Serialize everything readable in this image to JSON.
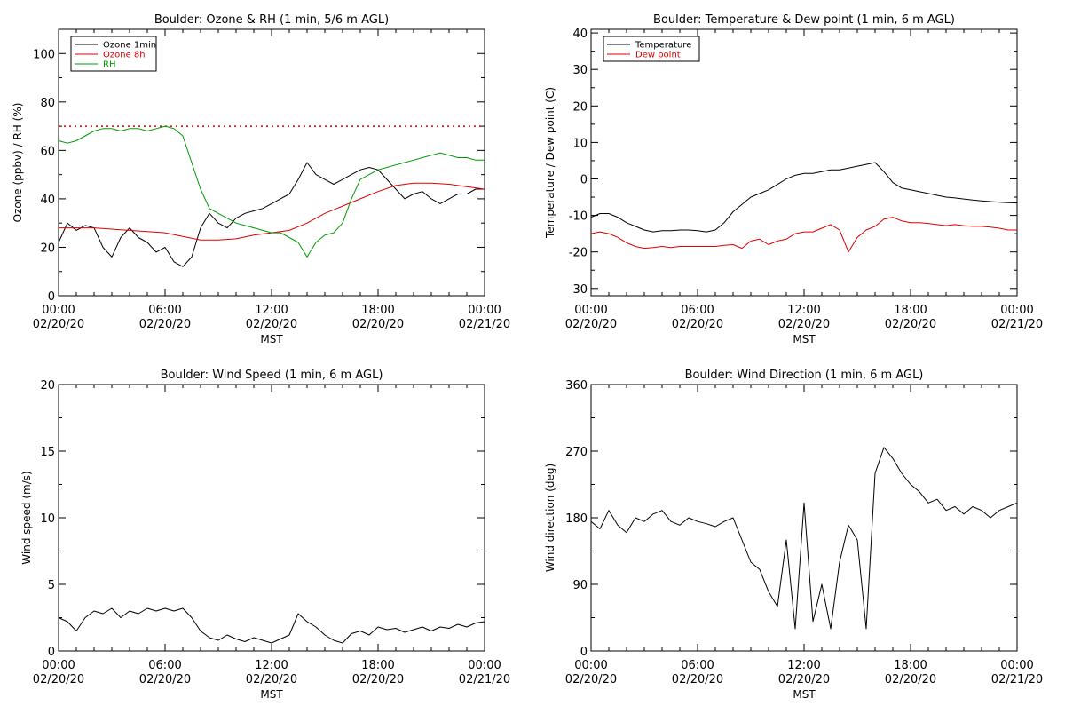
{
  "panels": [
    {
      "title": "Boulder: Ozone & RH (1 min, 5/6 m AGL)",
      "xlabel": "MST",
      "ylabel": "Ozone (ppbv) / RH (%)"
    },
    {
      "title": "Boulder: Temperature & Dew point (1 min, 6 m AGL)",
      "xlabel": "MST",
      "ylabel": "Temperature / Dew point (C)"
    },
    {
      "title": "Boulder: Wind Speed (1 min, 6 m AGL)",
      "xlabel": "MST",
      "ylabel": "Wind speed (m/s)"
    },
    {
      "title": "Boulder: Wind Direction (1 min, 6 m AGL)",
      "xlabel": "MST",
      "ylabel": "Wind direction (deg)"
    }
  ],
  "chart_data": [
    {
      "type": "line",
      "title": "Boulder: Ozone & RH (1 min, 5/6 m AGL)",
      "xlabel": "MST",
      "ylabel": "Ozone (ppbv) / RH (%)",
      "xlim": [
        0,
        24
      ],
      "ylim": [
        0,
        110
      ],
      "x_ticks": [
        0,
        6,
        12,
        18,
        24
      ],
      "x_tick_labels": [
        [
          "00:00",
          "02/20/20"
        ],
        [
          "06:00",
          "02/20/20"
        ],
        [
          "12:00",
          "02/20/20"
        ],
        [
          "18:00",
          "02/20/20"
        ],
        [
          "00:00",
          "02/21/20"
        ]
      ],
      "y_ticks": [
        0,
        20,
        40,
        60,
        80,
        100
      ],
      "y_tick_labels": [
        "0",
        "20",
        "40",
        "60",
        "80",
        "100"
      ],
      "legend_position": "top-left",
      "reference_lines": [
        {
          "y": 70,
          "color": "#e00000",
          "style": "dotted"
        }
      ],
      "series": [
        {
          "name": "Ozone 1min",
          "color": "#000000",
          "x": [
            0,
            0.5,
            1,
            1.5,
            2,
            2.5,
            3,
            3.5,
            4,
            4.5,
            5,
            5.5,
            6,
            6.5,
            7,
            7.5,
            8,
            8.5,
            9,
            9.5,
            10,
            10.5,
            11,
            11.5,
            12,
            12.5,
            13,
            13.5,
            14,
            14.5,
            15,
            15.5,
            16,
            16.5,
            17,
            17.5,
            18,
            18.5,
            19,
            19.5,
            20,
            20.5,
            21,
            21.5,
            22,
            22.5,
            23,
            23.5,
            24
          ],
          "y": [
            22,
            30,
            27,
            29,
            28,
            20,
            16,
            24,
            28,
            24,
            22,
            18,
            20,
            14,
            12,
            16,
            28,
            34,
            30,
            28,
            32,
            34,
            35,
            36,
            38,
            40,
            42,
            48,
            55,
            50,
            48,
            46,
            48,
            50,
            52,
            53,
            52,
            48,
            44,
            40,
            42,
            43,
            40,
            38,
            40,
            42,
            42,
            44,
            44
          ]
        },
        {
          "name": "Ozone 8h",
          "color": "#e00000",
          "x": [
            0,
            1,
            2,
            3,
            4,
            5,
            6,
            7,
            8,
            9,
            10,
            11,
            12,
            13,
            14,
            15,
            16,
            17,
            18,
            19,
            20,
            21,
            22,
            23,
            24
          ],
          "y": [
            28,
            28,
            28,
            27.5,
            27,
            26.5,
            26,
            24.5,
            23,
            23,
            23.5,
            25,
            26,
            27,
            30,
            34,
            37,
            40,
            43,
            45.5,
            46.5,
            46.5,
            46,
            45,
            44
          ]
        },
        {
          "name": "RH",
          "color": "#009900",
          "x": [
            0,
            0.5,
            1,
            1.5,
            2,
            2.5,
            3,
            3.5,
            4,
            4.5,
            5,
            5.5,
            6,
            6.5,
            7,
            7.5,
            8,
            8.5,
            9,
            9.5,
            10,
            10.5,
            11,
            11.5,
            12,
            12.5,
            13,
            13.5,
            14,
            14.5,
            15,
            15.5,
            16,
            16.5,
            17,
            17.5,
            18,
            18.5,
            19,
            19.5,
            20,
            20.5,
            21,
            21.5,
            22,
            22.5,
            23,
            23.5,
            24
          ],
          "y": [
            64,
            63,
            64,
            66,
            68,
            69,
            69,
            68,
            69,
            69,
            68,
            69,
            70,
            69,
            66,
            55,
            44,
            36,
            34,
            32,
            30,
            29,
            28,
            27,
            26,
            26,
            24,
            22,
            16,
            22,
            25,
            26,
            30,
            40,
            48,
            50,
            52,
            53,
            54,
            55,
            56,
            57,
            58,
            59,
            58,
            57,
            57,
            56,
            56
          ]
        }
      ]
    },
    {
      "type": "line",
      "title": "Boulder: Temperature & Dew point (1 min, 6 m AGL)",
      "xlabel": "MST",
      "ylabel": "Temperature / Dew point (C)",
      "xlim": [
        0,
        24
      ],
      "ylim": [
        -32,
        41
      ],
      "x_ticks": [
        0,
        6,
        12,
        18,
        24
      ],
      "x_tick_labels": [
        [
          "00:00",
          "02/20/20"
        ],
        [
          "06:00",
          "02/20/20"
        ],
        [
          "12:00",
          "02/20/20"
        ],
        [
          "18:00",
          "02/20/20"
        ],
        [
          "00:00",
          "02/21/20"
        ]
      ],
      "y_ticks": [
        -30,
        -20,
        -10,
        0,
        10,
        20,
        30,
        40
      ],
      "y_tick_labels": [
        "-30",
        "-20",
        "-10",
        "0",
        "10",
        "20",
        "30",
        "40"
      ],
      "legend_position": "top-left",
      "series": [
        {
          "name": "Temperature",
          "color": "#000000",
          "x": [
            0,
            0.5,
            1,
            1.5,
            2,
            2.5,
            3,
            3.5,
            4,
            4.5,
            5,
            5.5,
            6,
            6.5,
            7,
            7.5,
            8,
            8.5,
            9,
            9.5,
            10,
            10.5,
            11,
            11.5,
            12,
            12.5,
            13,
            13.5,
            14,
            14.5,
            15,
            15.5,
            16,
            16.5,
            17,
            17.5,
            18,
            18.5,
            19,
            19.5,
            20,
            20.5,
            21,
            21.5,
            22,
            22.5,
            23,
            23.5,
            24
          ],
          "y": [
            -10.5,
            -9.5,
            -9.5,
            -10.5,
            -12,
            -13,
            -14,
            -14.5,
            -14.2,
            -14.2,
            -14,
            -14,
            -14.2,
            -14.5,
            -14,
            -12,
            -9,
            -7,
            -5,
            -4,
            -3,
            -1.5,
            0,
            1,
            1.5,
            1.5,
            2,
            2.5,
            2.5,
            3,
            3.5,
            4,
            4.5,
            2,
            -1,
            -2.5,
            -3,
            -3.5,
            -4,
            -4.5,
            -5,
            -5.2,
            -5.5,
            -5.8,
            -6,
            -6.2,
            -6.4,
            -6.5,
            -6.6
          ]
        },
        {
          "name": "Dew point",
          "color": "#e00000",
          "x": [
            0,
            0.5,
            1,
            1.5,
            2,
            2.5,
            3,
            3.5,
            4,
            4.5,
            5,
            5.5,
            6,
            6.5,
            7,
            7.5,
            8,
            8.5,
            9,
            9.5,
            10,
            10.5,
            11,
            11.5,
            12,
            12.5,
            13,
            13.5,
            14,
            14.5,
            15,
            15.5,
            16,
            16.5,
            17,
            17.5,
            18,
            18.5,
            19,
            19.5,
            20,
            20.5,
            21,
            21.5,
            22,
            22.5,
            23,
            23.5,
            24
          ],
          "y": [
            -15,
            -14.5,
            -15,
            -16,
            -17.5,
            -18.5,
            -19,
            -18.8,
            -18.5,
            -18.8,
            -18.5,
            -18.5,
            -18.5,
            -18.5,
            -18.5,
            -18.2,
            -18,
            -19,
            -17,
            -16.5,
            -18,
            -17,
            -16.5,
            -15,
            -14.5,
            -14.5,
            -13.5,
            -12.5,
            -14,
            -20,
            -16,
            -14,
            -13,
            -11,
            -10.5,
            -11.5,
            -12,
            -12,
            -12.2,
            -12.5,
            -12.8,
            -12.5,
            -12.8,
            -13,
            -13,
            -13.2,
            -13.5,
            -14,
            -14
          ]
        }
      ]
    },
    {
      "type": "line",
      "title": "Boulder: Wind Speed (1 min, 6 m AGL)",
      "xlabel": "MST",
      "ylabel": "Wind speed (m/s)",
      "xlim": [
        0,
        24
      ],
      "ylim": [
        0,
        20
      ],
      "x_ticks": [
        0,
        6,
        12,
        18,
        24
      ],
      "x_tick_labels": [
        [
          "00:00",
          "02/20/20"
        ],
        [
          "06:00",
          "02/20/20"
        ],
        [
          "12:00",
          "02/20/20"
        ],
        [
          "18:00",
          "02/20/20"
        ],
        [
          "00:00",
          "02/21/20"
        ]
      ],
      "y_ticks": [
        0,
        5,
        10,
        15,
        20
      ],
      "y_tick_labels": [
        "0",
        "5",
        "10",
        "15",
        "20"
      ],
      "series": [
        {
          "name": "",
          "color": "#000000",
          "x": [
            0,
            0.5,
            1,
            1.5,
            2,
            2.5,
            3,
            3.5,
            4,
            4.5,
            5,
            5.5,
            6,
            6.5,
            7,
            7.5,
            8,
            8.5,
            9,
            9.5,
            10,
            10.5,
            11,
            11.5,
            12,
            12.5,
            13,
            13.5,
            14,
            14.5,
            15,
            15.5,
            16,
            16.5,
            17,
            17.5,
            18,
            18.5,
            19,
            19.5,
            20,
            20.5,
            21,
            21.5,
            22,
            22.5,
            23,
            23.5,
            24
          ],
          "y": [
            2.5,
            2.2,
            1.5,
            2.5,
            3,
            2.8,
            3.2,
            2.5,
            3,
            2.8,
            3.2,
            3,
            3.2,
            3,
            3.2,
            2.5,
            1.5,
            1,
            0.8,
            1.2,
            0.9,
            0.7,
            1,
            0.8,
            0.6,
            0.9,
            1.2,
            2.8,
            2.2,
            1.8,
            1.2,
            0.8,
            0.6,
            1.3,
            1.5,
            1.2,
            1.8,
            1.6,
            1.7,
            1.4,
            1.6,
            1.8,
            1.5,
            1.8,
            1.7,
            2,
            1.8,
            2.1,
            2.2
          ]
        }
      ]
    },
    {
      "type": "line",
      "title": "Boulder: Wind Direction (1 min, 6 m AGL)",
      "xlabel": "MST",
      "ylabel": "Wind direction (deg)",
      "xlim": [
        0,
        24
      ],
      "ylim": [
        0,
        360
      ],
      "x_ticks": [
        0,
        6,
        12,
        18,
        24
      ],
      "x_tick_labels": [
        [
          "00:00",
          "02/20/20"
        ],
        [
          "06:00",
          "02/20/20"
        ],
        [
          "12:00",
          "02/20/20"
        ],
        [
          "18:00",
          "02/20/20"
        ],
        [
          "00:00",
          "02/21/20"
        ]
      ],
      "y_ticks": [
        0,
        90,
        180,
        270,
        360
      ],
      "y_tick_labels": [
        "0",
        "90",
        "180",
        "270",
        "360"
      ],
      "series": [
        {
          "name": "",
          "color": "#000000",
          "x": [
            0,
            0.5,
            1,
            1.5,
            2,
            2.5,
            3,
            3.5,
            4,
            4.5,
            5,
            5.5,
            6,
            6.5,
            7,
            7.5,
            8,
            8.5,
            9,
            9.5,
            10,
            10.5,
            11,
            11.5,
            12,
            12.5,
            13,
            13.5,
            14,
            14.5,
            15,
            15.5,
            16,
            16.5,
            17,
            17.5,
            18,
            18.5,
            19,
            19.5,
            20,
            20.5,
            21,
            21.5,
            22,
            22.5,
            23,
            23.5,
            24
          ],
          "y": [
            175,
            165,
            190,
            170,
            160,
            180,
            175,
            185,
            190,
            175,
            170,
            180,
            175,
            172,
            168,
            175,
            180,
            150,
            120,
            110,
            80,
            60,
            150,
            30,
            200,
            40,
            90,
            30,
            120,
            170,
            150,
            30,
            240,
            275,
            260,
            240,
            225,
            215,
            200,
            205,
            190,
            195,
            185,
            195,
            190,
            180,
            190,
            195,
            200
          ]
        }
      ]
    }
  ]
}
